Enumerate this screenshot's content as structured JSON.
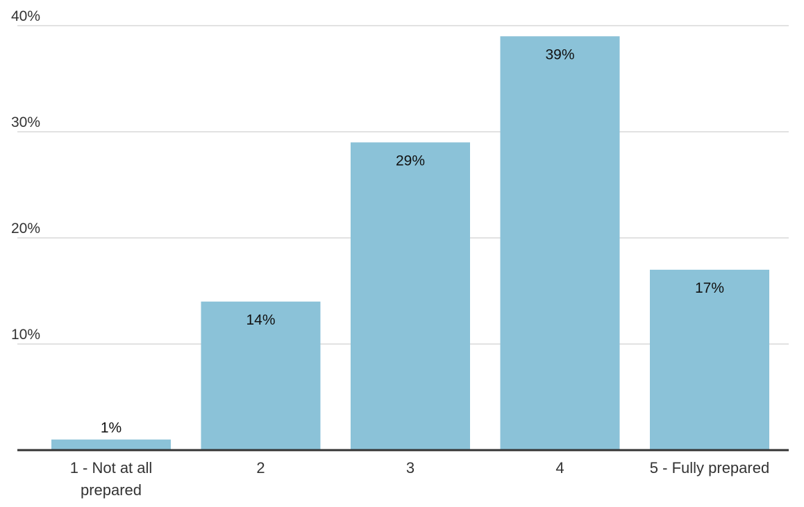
{
  "chart_data": {
    "type": "bar",
    "categories": [
      [
        "1 - Not at all",
        "prepared"
      ],
      [
        "2"
      ],
      [
        "3"
      ],
      [
        "4"
      ],
      [
        "5 - Fully prepared"
      ]
    ],
    "values": [
      1,
      14,
      29,
      39,
      17
    ],
    "data_labels": [
      "1%",
      "14%",
      "29%",
      "39%",
      "17%"
    ],
    "title": "",
    "xlabel": "",
    "ylabel": "",
    "ylim": [
      0,
      40
    ],
    "yticks": [
      10,
      20,
      30,
      40
    ],
    "ytick_labels": [
      "10%",
      "20%",
      "30%",
      "40%"
    ],
    "grid": true,
    "bar_color": "#8bc2d8",
    "grid_color": "#d9d9d9",
    "axis_color": "#333333"
  }
}
